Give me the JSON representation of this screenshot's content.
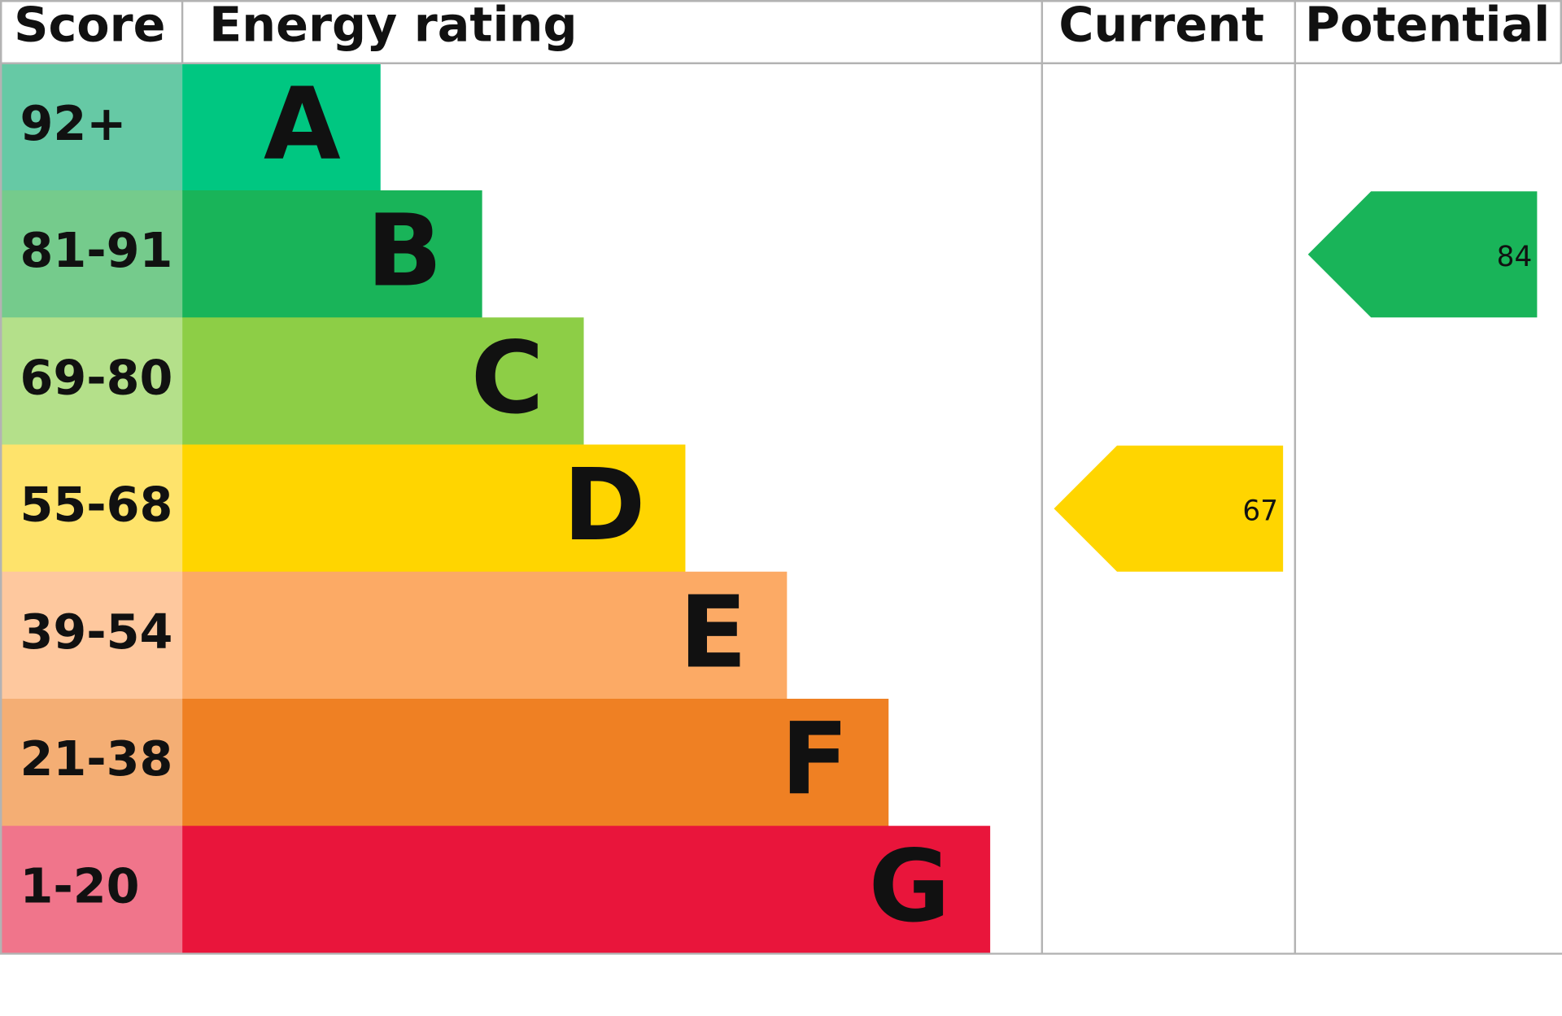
{
  "chart_data": {
    "type": "epc",
    "headers": [
      "Score",
      "Energy rating",
      "Current",
      "Potential"
    ],
    "categories": [
      "A",
      "B",
      "C",
      "D",
      "E",
      "F",
      "G"
    ],
    "scores": [
      "92+",
      "81-91",
      "69-80",
      "55-68",
      "39-54",
      "21-38",
      "1-20"
    ],
    "colors": [
      "#00c781",
      "#19b459",
      "#8dce46",
      "#ffd500",
      "#fcaa65",
      "#ef8023",
      "#e9153b"
    ],
    "score_colors": [
      "#66c9a5",
      "#75cb8c",
      "#b4e08a",
      "#fee36b",
      "#fec89e",
      "#f4ae74",
      "#f0758b"
    ],
    "current": {
      "value": 67
    },
    "potential": {
      "value": 84
    }
  }
}
